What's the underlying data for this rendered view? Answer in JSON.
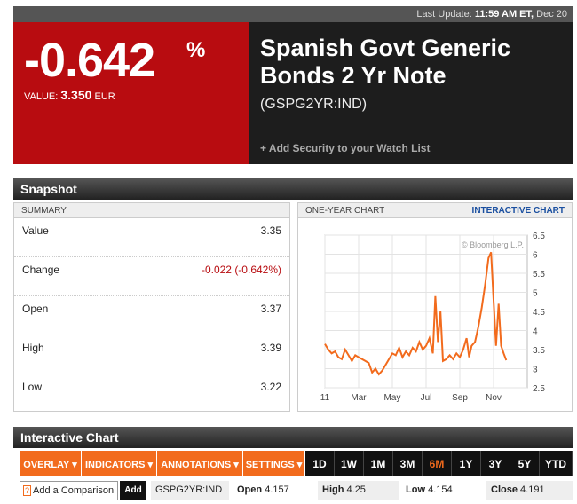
{
  "header": {
    "last_update_label": "Last Update:",
    "last_update_time": "11:59 AM ET,",
    "last_update_date": "Dec 20"
  },
  "quote": {
    "change_pct": "-0.642",
    "pct_sign": "%",
    "value_label": "VALUE:",
    "value": "3.350",
    "currency": "EUR"
  },
  "security": {
    "title": "Spanish Govt Generic Bonds 2 Yr Note",
    "ticker": "(GSPG2YR:IND)",
    "watch_link": "+ Add Security to your Watch List"
  },
  "snapshot": {
    "section_title": "Snapshot",
    "summary_header": "SUMMARY",
    "rows": [
      {
        "label": "Value",
        "value": "3.35"
      },
      {
        "label": "Change",
        "value": "-0.022 (-0.642%)"
      },
      {
        "label": "Open",
        "value": "3.37"
      },
      {
        "label": "High",
        "value": "3.39"
      },
      {
        "label": "Low",
        "value": "3.22"
      }
    ],
    "chart_header": "ONE-YEAR CHART",
    "interactive_link": "INTERACTIVE CHART"
  },
  "chart_data": {
    "type": "line",
    "watermark": "© Bloomberg L.P.",
    "x_tick_labels": [
      "11",
      "Mar",
      "May",
      "Jul",
      "Sep",
      "Nov"
    ],
    "y_tick_labels": [
      "6.5",
      "6",
      "5.5",
      "5",
      "4.5",
      "4",
      "3.5",
      "3",
      "2.5"
    ],
    "ylim": [
      2.5,
      6.5
    ],
    "x_range": [
      0,
      12
    ],
    "grid": true,
    "line_color": "#f26b1d",
    "series": [
      {
        "values": [
          [
            0,
            3.65
          ],
          [
            0.2,
            3.5
          ],
          [
            0.4,
            3.4
          ],
          [
            0.6,
            3.45
          ],
          [
            0.8,
            3.3
          ],
          [
            1,
            3.25
          ],
          [
            1.2,
            3.5
          ],
          [
            1.4,
            3.35
          ],
          [
            1.6,
            3.2
          ],
          [
            1.8,
            3.35
          ],
          [
            2,
            3.3
          ],
          [
            2.2,
            3.25
          ],
          [
            2.4,
            3.2
          ],
          [
            2.6,
            3.15
          ],
          [
            2.8,
            2.9
          ],
          [
            3,
            3.0
          ],
          [
            3.2,
            2.85
          ],
          [
            3.4,
            2.95
          ],
          [
            3.6,
            3.1
          ],
          [
            3.8,
            3.25
          ],
          [
            4,
            3.4
          ],
          [
            4.2,
            3.35
          ],
          [
            4.4,
            3.55
          ],
          [
            4.6,
            3.3
          ],
          [
            4.8,
            3.45
          ],
          [
            5,
            3.35
          ],
          [
            5.2,
            3.55
          ],
          [
            5.4,
            3.45
          ],
          [
            5.6,
            3.7
          ],
          [
            5.8,
            3.5
          ],
          [
            6,
            3.6
          ],
          [
            6.2,
            3.8
          ],
          [
            6.4,
            3.4
          ],
          [
            6.55,
            4.9
          ],
          [
            6.7,
            3.7
          ],
          [
            6.85,
            4.5
          ],
          [
            7,
            3.2
          ],
          [
            7.2,
            3.25
          ],
          [
            7.4,
            3.35
          ],
          [
            7.6,
            3.25
          ],
          [
            7.8,
            3.4
          ],
          [
            8,
            3.3
          ],
          [
            8.2,
            3.5
          ],
          [
            8.4,
            3.8
          ],
          [
            8.55,
            3.3
          ],
          [
            8.7,
            3.6
          ],
          [
            8.9,
            3.7
          ],
          [
            9.1,
            4.1
          ],
          [
            9.3,
            4.6
          ],
          [
            9.5,
            5.2
          ],
          [
            9.7,
            5.9
          ],
          [
            9.85,
            6.05
          ],
          [
            10,
            4.8
          ],
          [
            10.15,
            3.6
          ],
          [
            10.3,
            4.7
          ],
          [
            10.45,
            3.6
          ],
          [
            10.6,
            3.4
          ],
          [
            10.75,
            3.22
          ]
        ]
      }
    ]
  },
  "interactive": {
    "section_title": "Interactive Chart",
    "menus": [
      "OVERLAY ▾",
      "INDICATORS ▾",
      "ANNOTATIONS ▾",
      "SETTINGS ▾"
    ],
    "ranges": [
      "1D",
      "1W",
      "1M",
      "3M",
      "6M",
      "1Y",
      "3Y",
      "5Y",
      "YTD"
    ],
    "active_range": "6M",
    "compare_icon": "?",
    "compare_label": "Add a Comparison",
    "add_label": "Add",
    "ticker": "GSPG2YR:IND",
    "open_label": "Open",
    "open_value": "4.157",
    "high_label": "High",
    "high_value": "4.25",
    "low_label": "Low",
    "low_value": "4.154",
    "close_label": "Close",
    "close_value": "4.191"
  }
}
